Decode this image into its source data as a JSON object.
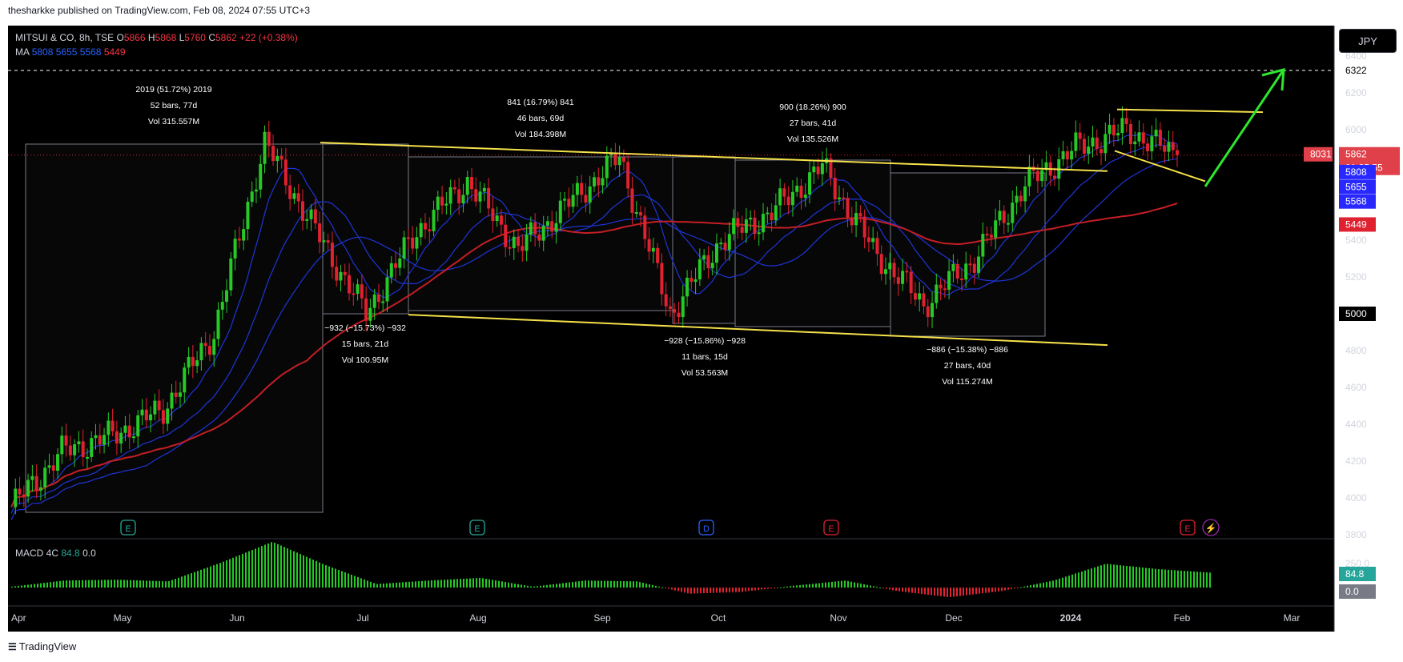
{
  "publish_line": "thesharkke published on TradingView.com, Feb 08, 2024 07:55 UTC+3",
  "footer_brand": "TradingView",
  "currency": "JPY",
  "legend": {
    "symbol": "MITSUI & CO, 8h, TSE",
    "o_label": "O",
    "o": "5866",
    "h_label": "H",
    "h": "5868",
    "l_label": "L",
    "l": "5760",
    "c_label": "C",
    "c": "5862",
    "change": "+22 (+0.38%)",
    "ma_label": "MA",
    "ma_values": [
      "5808",
      "5655",
      "5568",
      "5449"
    ],
    "macd_label": "MACD 4C",
    "macd_value": "84.8",
    "macd_zero": "0.0"
  },
  "colors": {
    "background": "#000000",
    "up": "#26c926",
    "down": "#e0212f",
    "ma_fast": "#1e35d6",
    "ma_slow": "#c41e24",
    "trendline": "#f5e14a",
    "arrow": "#2ee62e",
    "price_label": "#e0404a",
    "ma_label_bg": "#2929ff"
  },
  "price_axis": {
    "ticks": [
      "6400",
      "6200",
      "6000",
      "5800",
      "5600",
      "5400",
      "5200",
      "5000",
      "4800",
      "4600",
      "4400",
      "4200",
      "4000",
      "3800"
    ],
    "tags": [
      {
        "text": "6322",
        "kind": "target"
      },
      {
        "text": "5862",
        "kind": "last"
      },
      {
        "text": "01:25:55",
        "kind": "countdown"
      },
      {
        "text": "5808",
        "kind": "ma"
      },
      {
        "text": "5655",
        "kind": "ma"
      },
      {
        "text": "5568",
        "kind": "ma"
      },
      {
        "text": "5449",
        "kind": "ma_red"
      },
      {
        "text": "8031",
        "kind": "volume"
      },
      {
        "text": "5000",
        "kind": "cursor"
      }
    ]
  },
  "macd_axis": {
    "ticks": [
      "250.0"
    ],
    "tags": [
      "84.8",
      "0.0"
    ]
  },
  "time_axis": [
    "Apr",
    "May",
    "Jun",
    "Jul",
    "Aug",
    "Sep",
    "Oct",
    "Nov",
    "Dec",
    "2024",
    "Feb",
    "Mar"
  ],
  "event_markers": [
    "E",
    "E",
    "D",
    "E",
    "E"
  ],
  "measure_boxes": [
    {
      "lines": [
        "2019 (51.72%) 2019",
        "52 bars, 77d",
        "Vol 315.557M"
      ]
    },
    {
      "lines": [
        "−932 (−15.73%) −932",
        "15 bars, 21d",
        "Vol 100.95M"
      ]
    },
    {
      "lines": [
        "841 (16.79%) 841",
        "46 bars, 69d",
        "Vol 184.398M"
      ]
    },
    {
      "lines": [
        "−928 (−15.86%) −928",
        "11 bars, 15d",
        "Vol 53.563M"
      ]
    },
    {
      "lines": [
        "900 (18.26%) 900",
        "27 bars, 41d",
        "Vol 135.526M"
      ]
    },
    {
      "lines": [
        "−886 (−15.38%) −886",
        "27 bars, 40d",
        "Vol 115.274M"
      ]
    }
  ],
  "chart_data": {
    "type": "line",
    "price_range": [
      3800,
      6400
    ],
    "macd_range": [
      -100,
      300
    ],
    "last_close": 5862,
    "target": 6322,
    "price_path": [
      {
        "x": "Apr",
        "y": 3950
      },
      {
        "x": "Apr-end",
        "y": 4250
      },
      {
        "x": "May-mid",
        "y": 4340
      },
      {
        "x": "Jun-start",
        "y": 4480
      },
      {
        "x": "Jun-mid",
        "y": 4900
      },
      {
        "x": "Jun-end",
        "y": 5930
      },
      {
        "x": "Jul-start",
        "y": 5450
      },
      {
        "x": "Jul-mid",
        "y": 5000
      },
      {
        "x": "Aug",
        "y": 5450
      },
      {
        "x": "Aug-mid",
        "y": 5720
      },
      {
        "x": "Sep-start",
        "y": 5350
      },
      {
        "x": "Sep-mid",
        "y": 5600
      },
      {
        "x": "Sep-end",
        "y": 5850
      },
      {
        "x": "Oct-start",
        "y": 5000
      },
      {
        "x": "Oct-mid",
        "y": 5400
      },
      {
        "x": "Nov",
        "y": 5550
      },
      {
        "x": "Nov-mid",
        "y": 5800
      },
      {
        "x": "Dec-start",
        "y": 5350
      },
      {
        "x": "Dec-mid",
        "y": 5050
      },
      {
        "x": "Dec-end",
        "y": 5300
      },
      {
        "x": "2024",
        "y": 5700
      },
      {
        "x": "Jan-mid",
        "y": 5900
      },
      {
        "x": "Feb",
        "y": 6000
      },
      {
        "x": "Feb-08",
        "y": 5862
      }
    ],
    "series": [
      {
        "values": [
          5808
        ]
      },
      {
        "values": [
          5655
        ]
      },
      {
        "values": [
          5568
        ]
      },
      {
        "values": [
          5449
        ]
      }
    ],
    "macd": [
      {
        "x": "Apr",
        "y": 5
      },
      {
        "x": "Apr-end",
        "y": 40
      },
      {
        "x": "May-mid",
        "y": 45
      },
      {
        "x": "Jun-start",
        "y": 35
      },
      {
        "x": "Jun-mid",
        "y": 140
      },
      {
        "x": "Jun-end",
        "y": 260
      },
      {
        "x": "Jul-start",
        "y": 130
      },
      {
        "x": "Jul-mid",
        "y": 20
      },
      {
        "x": "Aug",
        "y": 40
      },
      {
        "x": "Aug-mid",
        "y": 55
      },
      {
        "x": "Sep-start",
        "y": 5
      },
      {
        "x": "Sep-mid",
        "y": 40
      },
      {
        "x": "Sep-end",
        "y": 35
      },
      {
        "x": "Oct-start",
        "y": -35
      },
      {
        "x": "Oct-mid",
        "y": -25
      },
      {
        "x": "Nov",
        "y": 10
      },
      {
        "x": "Nov-mid",
        "y": 40
      },
      {
        "x": "Dec-start",
        "y": -20
      },
      {
        "x": "Dec-mid",
        "y": -55
      },
      {
        "x": "Dec-end",
        "y": -20
      },
      {
        "x": "2024",
        "y": 40
      },
      {
        "x": "Jan-mid",
        "y": 135
      },
      {
        "x": "Feb",
        "y": 105
      },
      {
        "x": "Feb-08",
        "y": 85
      }
    ]
  }
}
